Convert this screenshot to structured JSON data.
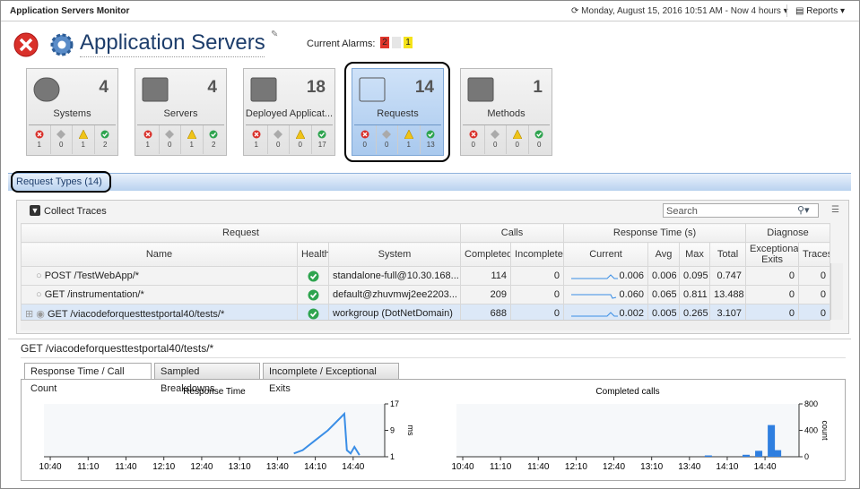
{
  "header": {
    "app_title": "Application Servers Monitor",
    "datetime": "Monday, August 15, 2016 10:51 AM - Now 4 hours",
    "reports": "Reports"
  },
  "page_title": "Application Servers",
  "alarms": {
    "label": "Current Alarms:",
    "critical": "2",
    "warning": "1"
  },
  "tiles": [
    {
      "count": "4",
      "label": "Systems",
      "states": [
        "1",
        "0",
        "1",
        "2"
      ]
    },
    {
      "count": "4",
      "label": "Servers",
      "states": [
        "1",
        "0",
        "1",
        "2"
      ]
    },
    {
      "count": "18",
      "label": "Deployed Applicat...",
      "states": [
        "1",
        "0",
        "0",
        "17"
      ]
    },
    {
      "count": "14",
      "label": "Requests",
      "states": [
        "0",
        "0",
        "1",
        "13"
      ]
    },
    {
      "count": "1",
      "label": "Methods",
      "states": [
        "0",
        "0",
        "0",
        "0"
      ]
    }
  ],
  "section_title": "Request Types (14)",
  "toolbar": {
    "collect": "Collect Traces",
    "search": "Search"
  },
  "table": {
    "group_headers": [
      "Request",
      "Calls",
      "Response Time (s)",
      "Diagnose"
    ],
    "columns": [
      "Name",
      "Health",
      "System",
      "Completed",
      "Incomplete",
      "Current",
      "Avg",
      "Max",
      "Total",
      "Exceptional Exits",
      "Traces"
    ],
    "rows": [
      {
        "name": "POST /TestWebApp/*",
        "system": "standalone-full@10.30.168...",
        "completed": "114",
        "incomplete": "0",
        "current": "0.006",
        "avg": "0.006",
        "max": "0.095",
        "total": "0.747",
        "exceptional": "0",
        "traces": "0"
      },
      {
        "name": "GET /instrumentation/*",
        "system": "default@zhuvmwj2ee2203...",
        "completed": "209",
        "incomplete": "0",
        "current": "0.060",
        "avg": "0.065",
        "max": "0.811",
        "total": "13.488",
        "exceptional": "0",
        "traces": "0"
      },
      {
        "name": "GET /viacodeforquesttestportal40/tests/*",
        "system": "workgroup (DotNetDomain)",
        "completed": "688",
        "incomplete": "0",
        "current": "0.002",
        "avg": "0.005",
        "max": "0.265",
        "total": "3.107",
        "exceptional": "0",
        "traces": "0"
      }
    ]
  },
  "detail": {
    "title": "GET /viacodeforquesttestportal40/tests/*",
    "tabs": [
      "Response Time / Call Count",
      "Sampled Breakdowns",
      "Incomplete / Exceptional Exits"
    ]
  },
  "chart_data": [
    {
      "type": "line",
      "title": "Response Time",
      "y_label": "ms",
      "color": "#3a8ee6",
      "x": [
        "13:53",
        "14:00",
        "14:10",
        "14:20",
        "14:33",
        "14:35",
        "14:38",
        "14:41",
        "14:45"
      ],
      "values": [
        2,
        3,
        6,
        9,
        14,
        3,
        2,
        4,
        1.5
      ],
      "xlim": [
        "10:35",
        "15:05"
      ],
      "xticks": [
        "10:40",
        "11:10",
        "11:40",
        "12:10",
        "12:40",
        "13:10",
        "13:40",
        "14:10",
        "14:40"
      ],
      "ylim": [
        1,
        17
      ],
      "yticks": [
        1,
        9,
        17
      ]
    },
    {
      "type": "bar",
      "title": "Completed calls",
      "y_label": "count",
      "color": "#2f7fe0",
      "x": [
        "13:55",
        "14:25",
        "14:35",
        "14:45",
        "14:50"
      ],
      "values": [
        20,
        30,
        90,
        480,
        100
      ],
      "xlim": [
        "10:35",
        "15:07"
      ],
      "xticks": [
        "10:40",
        "11:10",
        "11:40",
        "12:10",
        "12:40",
        "13:10",
        "13:40",
        "14:10",
        "14:40"
      ],
      "ylim": [
        0,
        800
      ],
      "yticks": [
        0,
        400,
        800
      ]
    }
  ]
}
